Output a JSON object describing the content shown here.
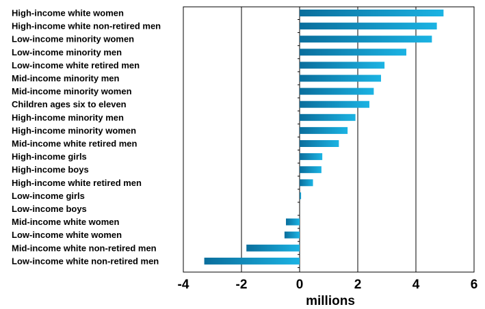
{
  "chart_data": {
    "type": "bar",
    "orientation": "horizontal",
    "title": "",
    "xlabel": "millions",
    "ylabel": "",
    "xlim": [
      -4,
      6
    ],
    "xticks": [
      -4,
      -2,
      0,
      2,
      4,
      6
    ],
    "grid": "vertical",
    "legend": "none",
    "bar_color": "#1bb3e3",
    "bar_color_dark": "#0a6e9c",
    "categories": [
      "High-income white women",
      "High-income white non-retired men",
      "Low-income minority women",
      "Low-income minority men",
      "Low-income white retired men",
      "Mid-income minority men",
      "Mid-income minority women",
      "Children ages six to eleven",
      "High-income minority men",
      "High-income minority women",
      "Mid-income white retired men",
      "High-income girls",
      "High-income boys",
      "High-income white retired men",
      "Low-income girls",
      "Low-income boys",
      "Mid-income white women",
      "Low-income white women",
      "Mid-income white non-retired men",
      "Low-income white non-retired men"
    ],
    "values": [
      4.95,
      4.72,
      4.55,
      3.67,
      2.92,
      2.8,
      2.55,
      2.4,
      1.92,
      1.65,
      1.35,
      0.78,
      0.75,
      0.46,
      0.05,
      0.0,
      -0.47,
      -0.52,
      -1.83,
      -3.28
    ]
  }
}
